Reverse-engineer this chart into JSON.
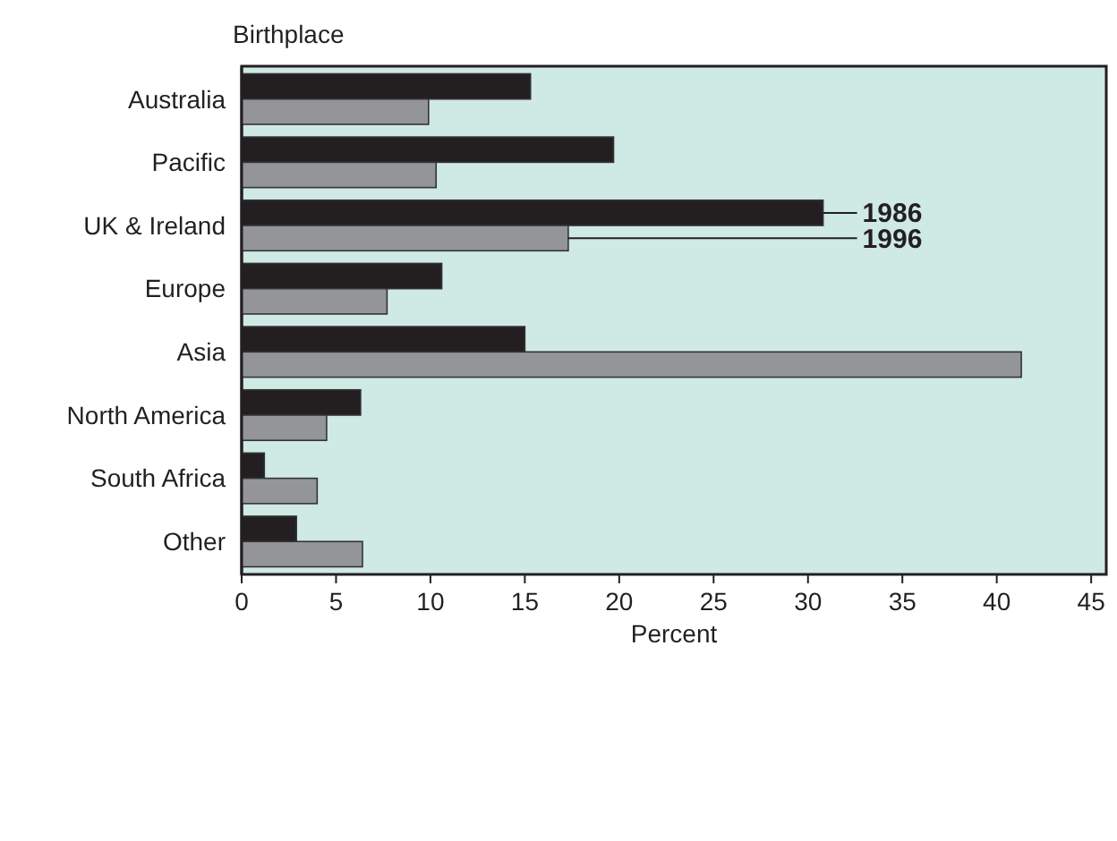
{
  "chart_data": {
    "type": "bar",
    "orientation": "horizontal",
    "ylabel": "Birthplace",
    "xlabel": "Percent",
    "categories": [
      "Australia",
      "Pacific",
      "UK & Ireland",
      "Europe",
      "Asia",
      "North America",
      "South Africa",
      "Other"
    ],
    "series": [
      {
        "name": "1986",
        "color": "#231f20",
        "values": [
          15.3,
          19.7,
          30.8,
          10.6,
          15.0,
          6.3,
          1.2,
          2.9
        ]
      },
      {
        "name": "1996",
        "color": "#939598",
        "values": [
          9.9,
          10.3,
          17.3,
          7.7,
          41.3,
          4.5,
          4.0,
          6.4
        ]
      }
    ],
    "xlim": [
      0,
      45.8
    ],
    "xticks": [
      0,
      5,
      10,
      15,
      20,
      25,
      30,
      35,
      40,
      45
    ],
    "legend": "right"
  }
}
